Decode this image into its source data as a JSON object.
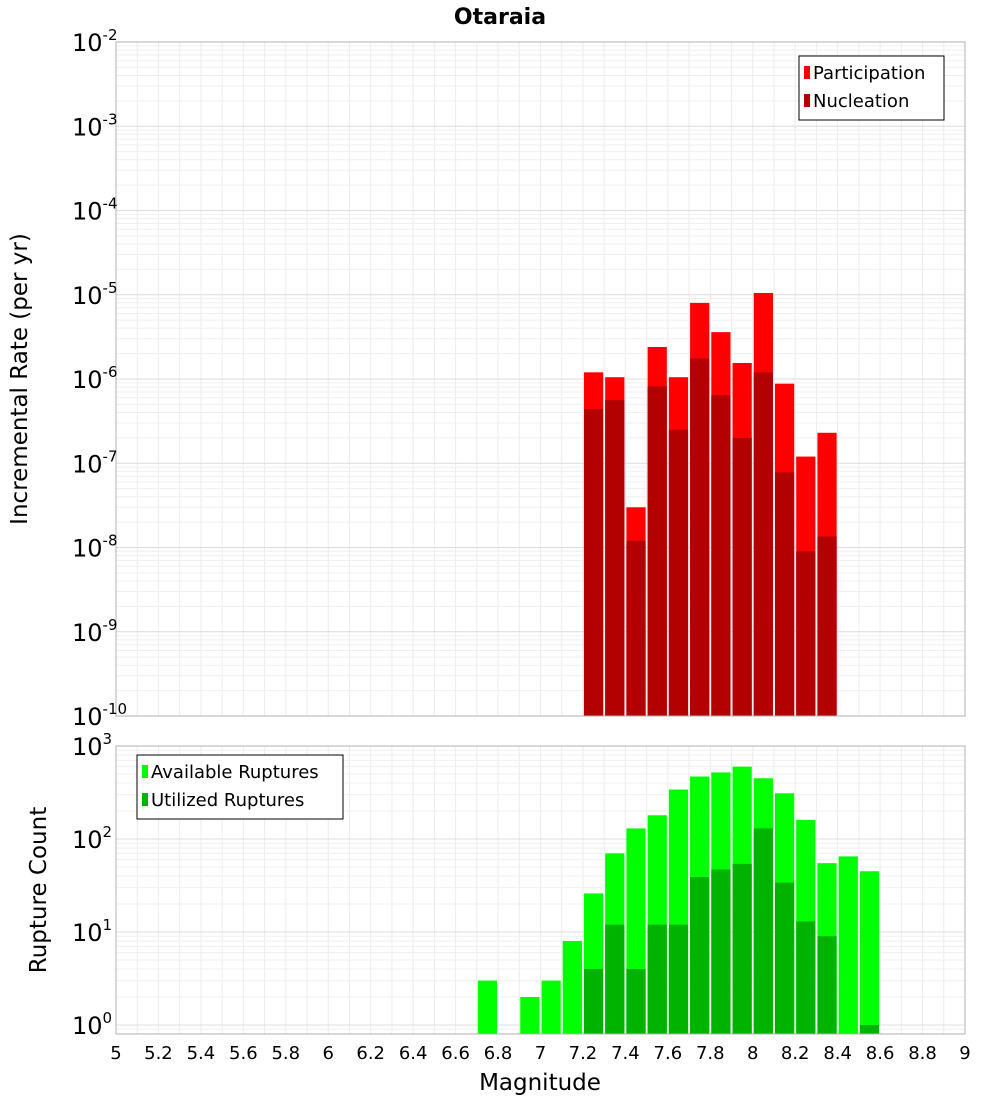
{
  "chart_data": [
    {
      "type": "bar",
      "title": "Otaraia",
      "ylabel": "Incremental Rate (per yr)",
      "xlabel": "",
      "yscale": "log",
      "ylim": [
        1e-10,
        0.01
      ],
      "xlim": [
        5,
        9
      ],
      "grid": true,
      "legend_position": "top-right",
      "bin_width": 0.1,
      "y_tick_labels": [
        {
          "base": "10",
          "exp": "-2",
          "value": 0.01
        },
        {
          "base": "10",
          "exp": "-3",
          "value": 0.001
        },
        {
          "base": "10",
          "exp": "-4",
          "value": 0.0001
        },
        {
          "base": "10",
          "exp": "-5",
          "value": 1e-05
        },
        {
          "base": "10",
          "exp": "-6",
          "value": 1e-06
        },
        {
          "base": "10",
          "exp": "-7",
          "value": 1e-07
        },
        {
          "base": "10",
          "exp": "-8",
          "value": 1e-08
        },
        {
          "base": "10",
          "exp": "-9",
          "value": 1e-09
        },
        {
          "base": "10",
          "exp": "-10",
          "value": 1e-10
        }
      ],
      "series": [
        {
          "name": "Participation",
          "color": "#ff0000",
          "x": [
            7.25,
            7.35,
            7.45,
            7.55,
            7.65,
            7.75,
            7.85,
            7.95,
            8.05,
            8.15,
            8.25,
            8.35
          ],
          "values": [
            1.2e-06,
            1.05e-06,
            3e-08,
            2.4e-06,
            1.05e-06,
            8e-06,
            3.6e-06,
            1.55e-06,
            1.05e-05,
            8.8e-07,
            1.2e-07,
            2.3e-07
          ]
        },
        {
          "name": "Nucleation",
          "color": "#b30000",
          "x": [
            7.25,
            7.35,
            7.45,
            7.55,
            7.65,
            7.75,
            7.85,
            7.95,
            8.05,
            8.15,
            8.25,
            8.35
          ],
          "values": [
            4.4e-07,
            5.6e-07,
            1.2e-08,
            8.2e-07,
            2.5e-07,
            1.75e-06,
            6.4e-07,
            2e-07,
            1.2e-06,
            7.8e-08,
            9e-09,
            1.35e-08
          ]
        }
      ]
    },
    {
      "type": "bar",
      "title": "",
      "ylabel": "Rupture Count",
      "xlabel": "Magnitude",
      "yscale": "log",
      "ylim": [
        0.8,
        1000
      ],
      "xlim": [
        5,
        9
      ],
      "grid": true,
      "legend_position": "top-left",
      "bin_width": 0.1,
      "x_tick_labels": [
        "5",
        "5.2",
        "5.4",
        "5.6",
        "5.8",
        "6",
        "6.2",
        "6.4",
        "6.6",
        "6.8",
        "7",
        "7.2",
        "7.4",
        "7.6",
        "7.8",
        "8",
        "8.2",
        "8.4",
        "8.6",
        "8.8",
        "9"
      ],
      "y_tick_labels": [
        {
          "base": "10",
          "exp": "3",
          "value": 1000
        },
        {
          "base": "10",
          "exp": "2",
          "value": 100
        },
        {
          "base": "10",
          "exp": "1",
          "value": 10
        },
        {
          "base": "10",
          "exp": "0",
          "value": 1
        }
      ],
      "series": [
        {
          "name": "Available Ruptures",
          "color": "#00ff00",
          "x": [
            6.75,
            6.95,
            7.05,
            7.15,
            7.25,
            7.35,
            7.45,
            7.55,
            7.65,
            7.75,
            7.85,
            7.95,
            8.05,
            8.15,
            8.25,
            8.35,
            8.45,
            8.55
          ],
          "values": [
            3,
            2,
            3,
            8,
            26,
            70,
            130,
            180,
            340,
            470,
            520,
            600,
            450,
            310,
            160,
            55,
            65,
            45
          ]
        },
        {
          "name": "Utilized Ruptures",
          "color": "#00b300",
          "x": [
            7.25,
            7.35,
            7.45,
            7.55,
            7.65,
            7.75,
            7.85,
            7.95,
            8.05,
            8.15,
            8.25,
            8.35,
            8.55
          ],
          "values": [
            4,
            12,
            4,
            12,
            12,
            39,
            47,
            54,
            130,
            34,
            13,
            9,
            1
          ]
        }
      ]
    }
  ]
}
